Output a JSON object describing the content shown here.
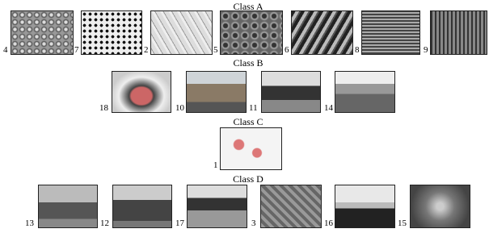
{
  "classes": [
    {
      "title": "Class A",
      "items": [
        {
          "label": 4
        },
        {
          "label": 7
        },
        {
          "label": 2
        },
        {
          "label": 5
        },
        {
          "label": 6
        },
        {
          "label": 8
        },
        {
          "label": 9
        }
      ]
    },
    {
      "title": "Class B",
      "items": [
        {
          "label": 18
        },
        {
          "label": 10
        },
        {
          "label": 11
        },
        {
          "label": 14
        }
      ]
    },
    {
      "title": "Class C",
      "items": [
        {
          "label": 1
        }
      ]
    },
    {
      "title": "Class D",
      "items": [
        {
          "label": 13
        },
        {
          "label": 12
        },
        {
          "label": 17
        },
        {
          "label": 3
        },
        {
          "label": 16
        },
        {
          "label": 15
        }
      ]
    }
  ]
}
